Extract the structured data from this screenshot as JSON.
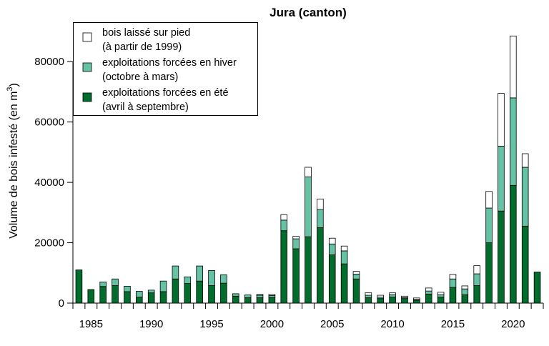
{
  "chart_data": {
    "type": "bar",
    "stacked": true,
    "title": "Jura (canton)",
    "xlabel": "",
    "ylabel": "Volume de bois infesté (en m",
    "ylabel_sup": "3",
    "ylabel_end": ")",
    "ylim": [
      0,
      90000
    ],
    "yticks": [
      0,
      20000,
      40000,
      60000,
      80000
    ],
    "ytick_labels": [
      "0",
      "20000",
      "40000",
      "60000",
      "80000"
    ],
    "xticks": [
      1985,
      1990,
      1995,
      2000,
      2005,
      2010,
      2015,
      2020
    ],
    "xtick_labels": [
      "1985",
      "1990",
      "1995",
      "2000",
      "2005",
      "2010",
      "2015",
      "2020"
    ],
    "grid": false,
    "legend_position": "top-left",
    "categories": [
      1984,
      1985,
      1986,
      1987,
      1988,
      1989,
      1990,
      1991,
      1992,
      1993,
      1994,
      1995,
      1996,
      1997,
      1998,
      1999,
      2000,
      2001,
      2002,
      2003,
      2004,
      2005,
      2006,
      2007,
      2008,
      2009,
      2010,
      2011,
      2012,
      2013,
      2014,
      2015,
      2016,
      2017,
      2018,
      2019,
      2020,
      2021,
      2022
    ],
    "series": [
      {
        "name": "exploitations forcées en été\n(avril à septembre)",
        "legend_lines": [
          "exploitations forcées en été",
          "(avril à septembre)"
        ],
        "color": "#006d2c",
        "values": [
          11000,
          4500,
          5500,
          5800,
          3800,
          2000,
          3400,
          3800,
          8000,
          6500,
          7300,
          5800,
          6600,
          2300,
          1800,
          1800,
          1900,
          24000,
          18000,
          22000,
          25000,
          16000,
          13000,
          8000,
          1800,
          1500,
          2000,
          1500,
          1000,
          3000,
          2000,
          5200,
          2800,
          5800,
          20000,
          30500,
          39000,
          25500,
          10300
        ]
      },
      {
        "name": "exploitations forcées en hiver\n(octobre à mars)",
        "legend_lines": [
          "exploitations forcées en hiver",
          "(octobre à mars)"
        ],
        "color": "#66c2a4",
        "values": [
          0,
          0,
          1500,
          2200,
          1800,
          1900,
          900,
          3500,
          4300,
          2200,
          5000,
          5000,
          2800,
          800,
          900,
          800,
          600,
          3500,
          3300,
          19800,
          6000,
          3600,
          4300,
          1600,
          800,
          500,
          800,
          300,
          200,
          1000,
          800,
          2800,
          1900,
          3900,
          11500,
          21500,
          29000,
          19500,
          0
        ]
      },
      {
        "name": "bois laissé sur pied\n(à partir de 1999)",
        "legend_lines": [
          "bois laissé sur pied",
          "(à partir de 1999)"
        ],
        "color": "#ffffff",
        "values": [
          0,
          0,
          0,
          0,
          0,
          0,
          0,
          0,
          0,
          0,
          0,
          0,
          0,
          0,
          0,
          300,
          400,
          1800,
          800,
          3200,
          3500,
          1900,
          1600,
          900,
          800,
          600,
          600,
          500,
          500,
          1000,
          800,
          1500,
          1000,
          2700,
          5500,
          17500,
          20500,
          4500,
          0
        ]
      }
    ],
    "legend_order": [
      2,
      1,
      0
    ]
  }
}
